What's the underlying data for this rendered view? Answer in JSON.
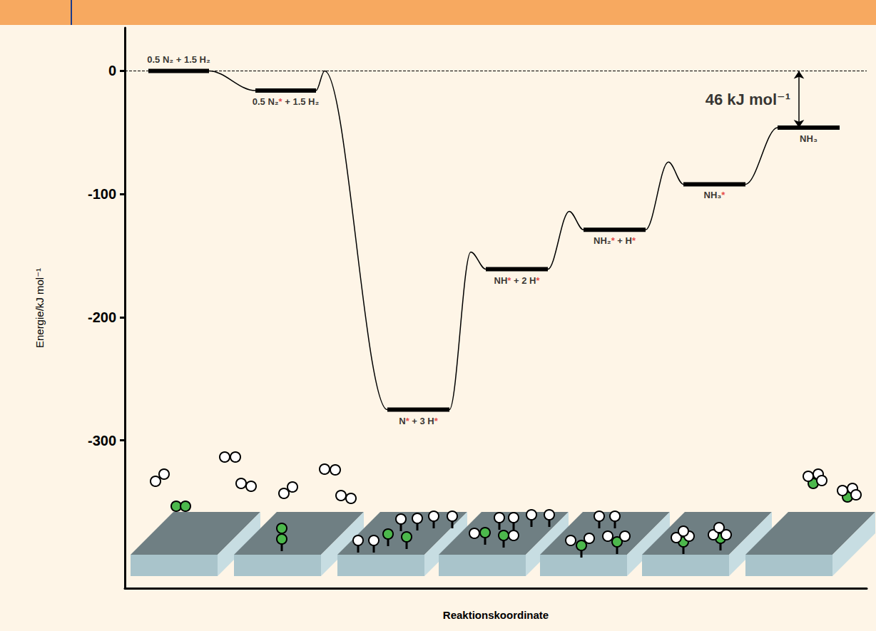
{
  "chart_data": {
    "type": "energy_profile",
    "x_label": "Reaktionskoordinate",
    "y_label": "Energie/kJ mol⁻¹",
    "color": "#000000",
    "levels": [
      {
        "label": "0.5 N₂ + 1.5 H₂",
        "energy": 0,
        "x": [
          3.3,
          11.8
        ]
      },
      {
        "label": "0.5 N₂* + 1.5 H₂",
        "energy": -16,
        "x": [
          18.3,
          26.8
        ]
      },
      {
        "label": "N* + 3 H*",
        "energy": -275,
        "x": [
          36.8,
          45.5
        ]
      },
      {
        "label": "NH* + 2 H*",
        "energy": -161,
        "x": [
          50.6,
          59.3
        ]
      },
      {
        "label": "NH₂* + H*",
        "energy": -129,
        "x": [
          64.3,
          73.0
        ]
      },
      {
        "label": "NH₃*",
        "energy": -92,
        "x": [
          78.3,
          87.0
        ]
      },
      {
        "label": "NH₃",
        "energy": -46,
        "x": [
          91.5,
          100.2
        ]
      }
    ],
    "barriers": [
      null,
      {
        "x": 28.0,
        "energy": 0
      },
      {
        "x": 48.5,
        "energy": -147
      },
      {
        "x": 62.3,
        "energy": -114
      },
      {
        "x": 76.2,
        "energy": -74
      },
      null
    ],
    "annotation": {
      "text": "46 kJ mol⁻¹",
      "x": 94.5,
      "from": 0,
      "to": -46
    },
    "xlim": [
      0,
      104
    ],
    "xticks": [],
    "ylim": [
      -420,
      35
    ],
    "yticks": [
      0,
      -100,
      -200,
      -300
    ],
    "grid": false,
    "tick_labels": "y"
  }
}
